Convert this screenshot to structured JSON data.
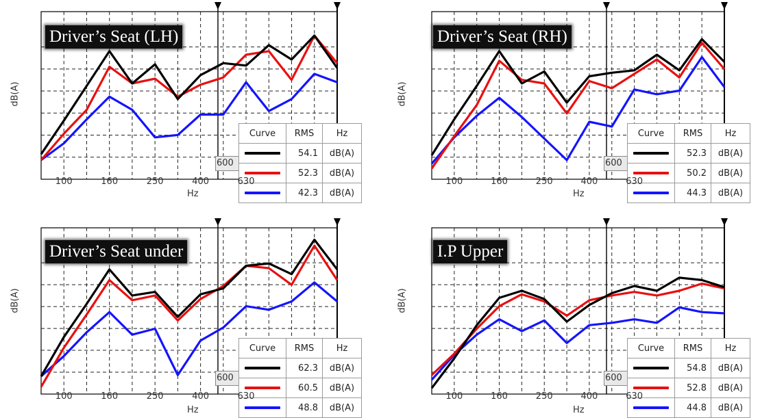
{
  "chart_data": [
    {
      "type": "line",
      "title": "Driver’s Seat (LH)",
      "ylabel": "dB(A)",
      "xlabel": "Hz",
      "x": [
        "80",
        "100",
        "125",
        "160",
        "200",
        "250",
        "315",
        "400",
        "500",
        "630",
        "800",
        "1000",
        "1250",
        "1600"
      ],
      "xticks": [
        "100",
        "160",
        "250",
        "400",
        "630"
      ],
      "cursor_label": "600",
      "grid": true,
      "legend": {
        "headers": [
          "Curve",
          "RMS",
          "Hz"
        ]
      },
      "series": [
        {
          "color": "#000000",
          "rms": "54.1",
          "unit": "dB(A)",
          "values": [
            2.1,
            4.9,
            7.8,
            10.7,
            8.0,
            9.6,
            6.7,
            8.7,
            9.7,
            9.5,
            11.2,
            10.0,
            12.0,
            9.3
          ]
        },
        {
          "color": "#e81010",
          "rms": "52.3",
          "unit": "dB(A)",
          "values": [
            1.6,
            3.8,
            5.8,
            9.4,
            8.0,
            8.4,
            6.9,
            7.9,
            8.5,
            10.4,
            10.7,
            8.3,
            12.0,
            9.7
          ]
        },
        {
          "color": "#1414ff",
          "rms": "42.3",
          "unit": "dB(A)",
          "values": [
            1.6,
            3.0,
            5.0,
            6.9,
            5.8,
            3.5,
            3.7,
            5.4,
            5.4,
            8.1,
            5.7,
            6.7,
            8.8,
            8.1
          ]
        }
      ]
    },
    {
      "type": "line",
      "title": "Driver’s Seat (RH)",
      "ylabel": "dB(A)",
      "xlabel": "Hz",
      "x": [
        "80",
        "100",
        "125",
        "160",
        "200",
        "250",
        "315",
        "400",
        "500",
        "630",
        "800",
        "1000",
        "1250",
        "1600"
      ],
      "xticks": [
        "100",
        "160",
        "250",
        "400",
        "630"
      ],
      "cursor_label": "600",
      "grid": true,
      "legend": {
        "headers": [
          "Curve",
          "RMS",
          "Hz"
        ]
      },
      "series": [
        {
          "color": "#000000",
          "rms": "52.3",
          "unit": "dB(A)",
          "values": [
            2.0,
            5.0,
            7.8,
            10.7,
            8.0,
            9.0,
            6.4,
            8.6,
            8.9,
            9.1,
            10.4,
            9.1,
            11.7,
            9.8
          ]
        },
        {
          "color": "#e81010",
          "rms": "50.2",
          "unit": "dB(A)",
          "values": [
            0.9,
            3.6,
            6.2,
            9.9,
            8.3,
            8.0,
            5.5,
            8.2,
            7.6,
            8.8,
            10.0,
            8.5,
            11.4,
            9.2
          ]
        },
        {
          "color": "#1414ff",
          "rms": "44.3",
          "unit": "dB(A)",
          "values": [
            1.3,
            3.5,
            5.3,
            6.8,
            5.2,
            3.4,
            1.6,
            4.8,
            4.4,
            7.5,
            7.1,
            7.4,
            10.2,
            7.7
          ]
        }
      ]
    },
    {
      "type": "line",
      "title": "Driver’s Seat under",
      "ylabel": "dB(A)",
      "xlabel": "Hz",
      "x": [
        "80",
        "100",
        "125",
        "160",
        "200",
        "250",
        "315",
        "400",
        "500",
        "630",
        "800",
        "1000",
        "1250",
        "1600"
      ],
      "xticks": [
        "100",
        "160",
        "250",
        "400",
        "630"
      ],
      "cursor_label": "600",
      "grid": true,
      "legend": {
        "headers": [
          "Curve",
          "RMS",
          "Hz"
        ]
      },
      "series": [
        {
          "color": "#000000",
          "rms": "62.3",
          "unit": "dB(A)",
          "values": [
            1.5,
            4.8,
            7.6,
            10.5,
            8.3,
            8.6,
            6.5,
            8.4,
            8.9,
            10.8,
            11.0,
            10.1,
            13.0,
            10.5
          ]
        },
        {
          "color": "#e81010",
          "rms": "60.5",
          "unit": "dB(A)",
          "values": [
            0.6,
            3.9,
            6.7,
            9.6,
            7.9,
            8.3,
            6.2,
            8.0,
            9.1,
            10.8,
            10.6,
            9.2,
            12.5,
            9.6
          ]
        },
        {
          "color": "#1414ff",
          "rms": "48.8",
          "unit": "dB(A)",
          "values": [
            1.5,
            3.2,
            5.2,
            6.9,
            5.0,
            5.5,
            1.6,
            4.5,
            5.6,
            7.4,
            7.1,
            7.8,
            9.4,
            7.8
          ]
        }
      ]
    },
    {
      "type": "line",
      "title": "I.P Upper",
      "ylabel": "dB(A)",
      "xlabel": "Hz",
      "x": [
        "80",
        "100",
        "125",
        "160",
        "200",
        "250",
        "315",
        "400",
        "500",
        "630",
        "800",
        "1000",
        "1250",
        "1600"
      ],
      "xticks": [
        "100",
        "160",
        "250",
        "400",
        "630"
      ],
      "cursor_label": "600",
      "grid": true,
      "legend": {
        "headers": [
          "Curve",
          "RMS",
          "Hz"
        ]
      },
      "series": [
        {
          "color": "#000000",
          "rms": "54.8",
          "unit": "dB(A)",
          "values": [
            0.5,
            3.0,
            5.8,
            8.1,
            8.7,
            8.0,
            6.1,
            7.5,
            8.5,
            9.1,
            8.7,
            9.8,
            9.6,
            9.0
          ]
        },
        {
          "color": "#e81010",
          "rms": "52.8",
          "unit": "dB(A)",
          "values": [
            1.6,
            3.4,
            5.5,
            7.4,
            8.4,
            7.8,
            6.6,
            7.9,
            8.3,
            8.6,
            8.3,
            8.7,
            9.3,
            8.9
          ]
        },
        {
          "color": "#1414ff",
          "rms": "44.8",
          "unit": "dB(A)",
          "values": [
            1.2,
            3.3,
            5.0,
            6.3,
            5.3,
            6.2,
            4.3,
            5.8,
            6.0,
            6.3,
            6.0,
            7.3,
            6.9,
            6.8
          ]
        }
      ]
    }
  ]
}
